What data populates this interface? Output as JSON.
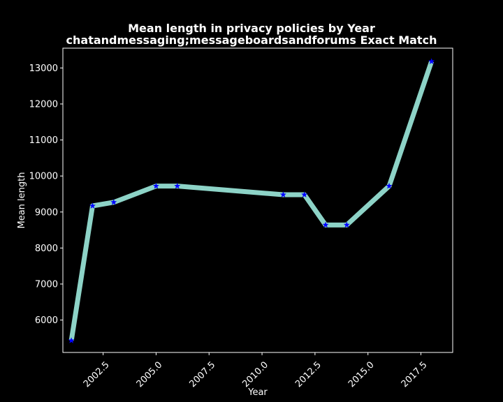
{
  "chart_data": {
    "type": "line",
    "title": "Mean length in privacy policies by Year",
    "subtitle": "chatandmessaging;messageboardsandforums Exact Match",
    "xlabel": "Year",
    "ylabel": "Mean length",
    "xlim": [
      2000.6,
      2019.0
    ],
    "ylim": [
      5100,
      13550
    ],
    "xticks": [
      "2002.5",
      "2005.0",
      "2007.5",
      "2010.0",
      "2012.5",
      "2015.0",
      "2017.5"
    ],
    "yticks": [
      "6000",
      "7000",
      "8000",
      "9000",
      "10000",
      "11000",
      "12000",
      "13000"
    ],
    "grid": false,
    "series": [
      {
        "x": [
          2001,
          2002,
          2003,
          2005,
          2006,
          2011,
          2012,
          2013,
          2014,
          2016,
          2018
        ],
        "y": [
          5430,
          9170,
          9270,
          9720,
          9720,
          9480,
          9480,
          8640,
          8640,
          9720,
          13180
        ],
        "line_color": "#8dd3c7",
        "marker": "star",
        "marker_color": "#0000ff"
      }
    ]
  }
}
